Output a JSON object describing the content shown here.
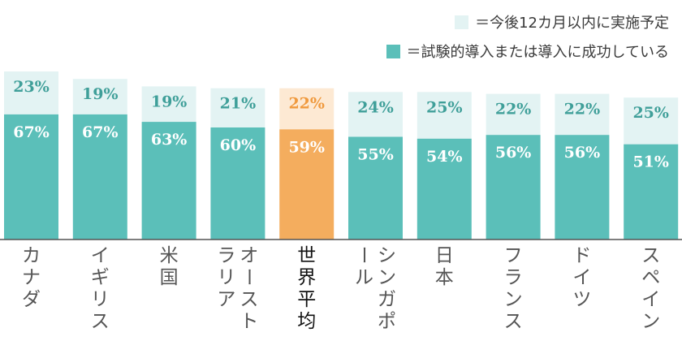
{
  "legend": {
    "planned": "＝今後12カ月以内に実施予定",
    "current": "＝試験的導入または導入に成功している"
  },
  "colors": {
    "current": "#5bbfb9",
    "planned": "#e3f3f3",
    "highlight_current": "#f4ad5e",
    "highlight_planned": "#fde9d3",
    "label_on_current": "#ffffff",
    "label_on_planned": "#3f9f99",
    "label_on_highlight_planned": "#f09a3e",
    "baseline": "#555555"
  },
  "chart_data": {
    "type": "bar",
    "stacked": true,
    "ylim": [
      0,
      100
    ],
    "highlight_category": "世界平均",
    "categories": [
      "カナダ",
      "イギリス",
      "米国",
      "オーストラリア",
      "世界平均",
      "シンガポール",
      "日本",
      "フランス",
      "ドイツ",
      "スペイン"
    ],
    "series": [
      {
        "name": "試験的導入または導入に成功している",
        "values": [
          67,
          67,
          63,
          60,
          59,
          55,
          54,
          56,
          56,
          51
        ],
        "labels": [
          "67%",
          "67%",
          "63%",
          "60%",
          "59%",
          "55%",
          "54%",
          "56%",
          "56%",
          "51%"
        ]
      },
      {
        "name": "今後12カ月以内に実施予定",
        "values": [
          23,
          19,
          19,
          21,
          22,
          24,
          25,
          22,
          22,
          25
        ],
        "labels": [
          "23%",
          "19%",
          "19%",
          "21%",
          "22%",
          "24%",
          "25%",
          "22%",
          "22%",
          "25%"
        ]
      }
    ]
  }
}
